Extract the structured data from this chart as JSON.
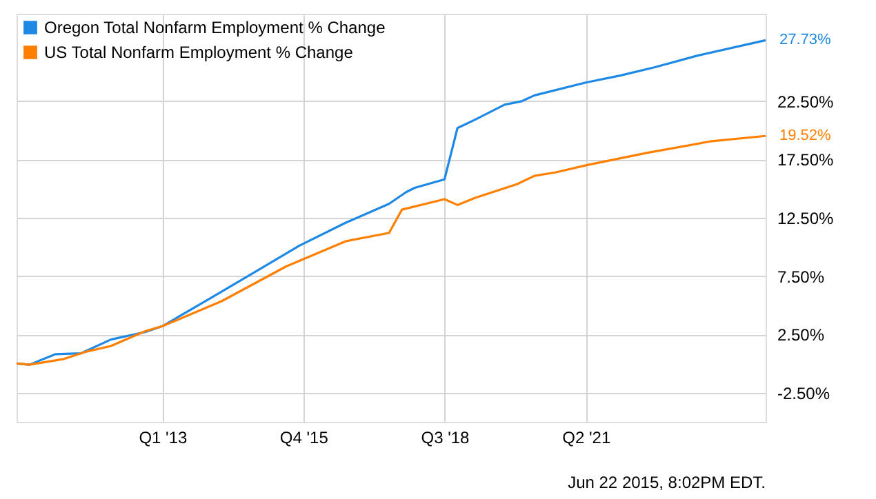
{
  "chart_data": {
    "type": "line",
    "series": [
      {
        "name": "Oregon Total Nonfarm Employment % Change",
        "color": "#1e88e5",
        "x": [
          "2010-03",
          "2010-06",
          "2010-12",
          "2011-06",
          "2012-01",
          "2012-09",
          "2013-01",
          "2013-12",
          "2014-11",
          "2015-09",
          "2016-08",
          "2017-06",
          "2017-10",
          "2017-12",
          "2018-07",
          "2018-10",
          "2019-02",
          "2019-09",
          "2020-01",
          "2020-04",
          "2021-04",
          "2021-12",
          "2022-08",
          "2023-06",
          "2024-10"
        ],
        "values": [
          0.0,
          -0.1,
          0.8,
          0.87,
          2.06,
          2.7,
          3.2,
          5.55,
          7.93,
          10.1,
          12.1,
          13.7,
          14.7,
          15.07,
          15.8,
          20.2,
          20.9,
          22.2,
          22.5,
          23.0,
          24.1,
          24.7,
          25.4,
          26.4,
          27.73
        ],
        "value_labels": [
          null,
          null,
          null,
          null,
          null,
          null,
          null,
          null,
          null,
          null,
          null,
          null,
          null,
          null,
          null,
          null,
          null,
          null,
          null,
          null,
          null,
          null,
          null,
          null,
          "27.73%"
        ]
      },
      {
        "name": "US Total Nonfarm Employment % Change",
        "color": "#ff8000",
        "x": [
          "2010-03",
          "2010-06",
          "2011-02",
          "2011-07",
          "2012-01",
          "2012-09",
          "2013-01",
          "2014-03",
          "2015-06",
          "2016-08",
          "2017-06",
          "2017-09",
          "2018-07",
          "2018-10",
          "2019-02",
          "2019-12",
          "2020-04",
          "2020-09",
          "2021-04",
          "2022-06",
          "2023-09",
          "2024-10"
        ],
        "values": [
          0.0,
          -0.1,
          0.39,
          0.99,
          1.5,
          2.77,
          3.2,
          5.36,
          8.33,
          10.5,
          11.2,
          13.2,
          14.1,
          13.6,
          14.2,
          15.4,
          16.1,
          16.4,
          17.0,
          18.05,
          19.05,
          19.52
        ],
        "value_labels": [
          null,
          null,
          null,
          null,
          null,
          null,
          null,
          null,
          null,
          null,
          null,
          null,
          null,
          null,
          null,
          null,
          null,
          null,
          null,
          null,
          null,
          "19.52%"
        ]
      }
    ],
    "xlim": [
      "2010-03",
      "2024-10"
    ],
    "xticks": [
      {
        "value": "2013-01",
        "label": "Q1 '13"
      },
      {
        "value": "2015-10",
        "label": "Q4 '15"
      },
      {
        "value": "2018-07",
        "label": "Q3 '18"
      },
      {
        "value": "2021-04",
        "label": "Q2 '21"
      }
    ],
    "ylim": [
      -5,
      30
    ],
    "yticks": [
      {
        "value": -2.5,
        "label": "-2.50%"
      },
      {
        "value": 2.5,
        "label": "2.50%"
      },
      {
        "value": 7.5,
        "label": "7.50%"
      },
      {
        "value": 12.5,
        "label": "12.50%"
      },
      {
        "value": 17.5,
        "label": "17.50%"
      },
      {
        "value": 22.5,
        "label": "22.50%"
      }
    ],
    "grid": true,
    "legend": "top left",
    "marker": "none",
    "line_style": "solid",
    "annotations": [
      "Jun 22 2015, 8:02PM EDT."
    ]
  }
}
